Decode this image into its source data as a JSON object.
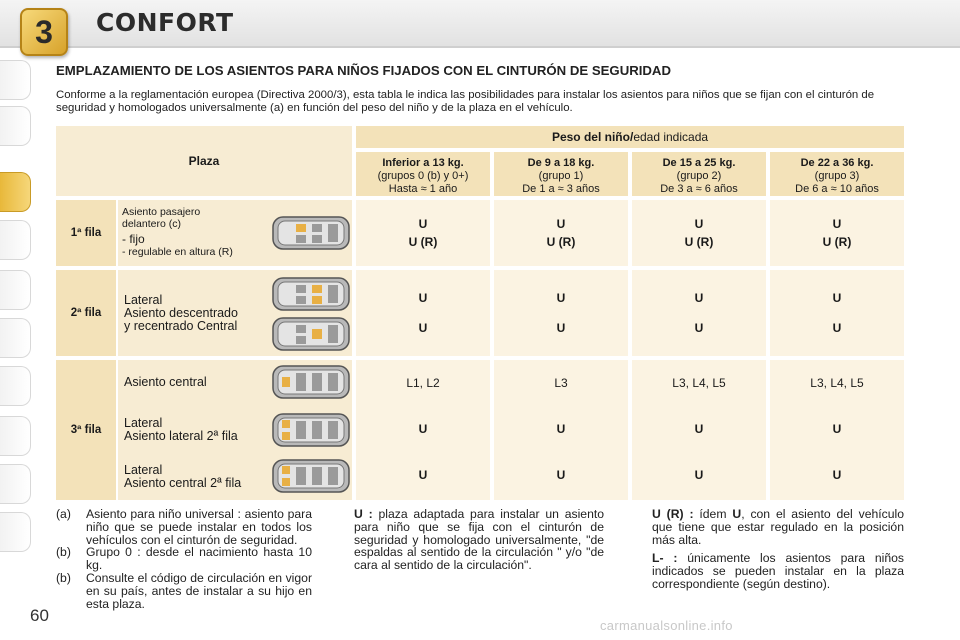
{
  "chapter": {
    "number": "3",
    "title": "CONFORT"
  },
  "section_title": "EMPLAZAMIENTO DE LOS ASIENTOS PARA NIÑOS FIJADOS CON EL CINTURÓN DE SEGURIDAD",
  "intro": "Conforme a la reglamentación europea (Directiva 2000/3), esta tabla le indica las posibilidades para instalar los asientos para niños que se fijan con el cinturón de seguridad y homologados universalmente (a) en función del peso del niño y de la plaza en el vehículo.",
  "table": {
    "plaza_header": "Plaza",
    "peso_header_bold": "Peso del niño/",
    "peso_header_rest": "edad indicada",
    "columns": [
      {
        "title": "Inferior a 13 kg.",
        "group": "(grupos 0 (b) y 0+)",
        "age": "Hasta ≈ 1 año"
      },
      {
        "title": "De 9 a 18 kg.",
        "group": "(grupo 1)",
        "age": "De 1 a ≈ 3 años"
      },
      {
        "title": "De 15 a 25 kg.",
        "group": "(grupo 2)",
        "age": "De 3 a ≈ 6 años"
      },
      {
        "title": "De 22 a 36 kg.",
        "group": "(grupo 3)",
        "age": "De 6 a ≈ 10 años"
      }
    ],
    "row1": {
      "label": "1ª fila",
      "desc_line1": "Asiento pasajero",
      "desc_line2": "delantero (c)",
      "desc_line3": "- fijo",
      "desc_line4": "- regulable en altura (R)",
      "values": [
        "U",
        "U",
        "U",
        "U"
      ],
      "values2": [
        "U (R)",
        "U (R)",
        "U (R)",
        "U (R)"
      ]
    },
    "row2": {
      "label": "2ª fila",
      "desc_line1": "Lateral",
      "desc_line2": "Asiento descentrado",
      "desc_line3": "y recentrado Central",
      "values_a": [
        "U",
        "U",
        "U",
        "U"
      ],
      "values_b": [
        "U",
        "U",
        "U",
        "U"
      ]
    },
    "row3": {
      "label": "3ª fila",
      "sub1": "Asiento central",
      "sub1_values": [
        "L1, L2",
        "L3",
        "L3, L4, L5",
        "L3, L4, L5"
      ],
      "sub2_line1": "Lateral",
      "sub2_line2": "Asiento lateral 2ª fila",
      "sub2_values": [
        "U",
        "U",
        "U",
        "U"
      ],
      "sub3_line1": "Lateral",
      "sub3_line2": "Asiento central 2ª fila",
      "sub3_values": [
        "U",
        "U",
        "U",
        "U"
      ]
    }
  },
  "notes": {
    "a_label": "(a)",
    "a_text": "Asiento para niño universal : asiento para niño que se puede instalar en todos los vehículos con el cinturón de seguridad.",
    "b1_label": "(b)",
    "b1_text": "Grupo 0 : desde el nacimiento hasta 10 kg.",
    "b2_label": "(b)",
    "b2_text": "Consulte el código de circulación en vigor en su país, antes de instalar a su hijo en esta plaza.",
    "u_label": "U :",
    "u_text": "plaza adaptada para instalar un asiento para niño que se fija con el cinturón de seguridad y homologado universalmente, \"de espaldas al sentido de la circulación \" y/o \"de cara al sentido de la circulación\".",
    "ur_label": "U (R) :",
    "ur_text_a": "ídem",
    "ur_text_u": "U",
    "ur_text_b": ", con el asiento del vehículo que tiene que estar regulado en la posición más alta.",
    "l_label": "L- :",
    "l_text": "únicamente los asientos para niños indicados se pueden instalar en la plaza correspondiente (según destino)."
  },
  "page_number": "60",
  "watermark": "carmanualsonline.info",
  "colors": {
    "accent_gold": "#d7a22a",
    "table_bg": "#f7ecd3",
    "header_bg": "#f3e2b9"
  }
}
